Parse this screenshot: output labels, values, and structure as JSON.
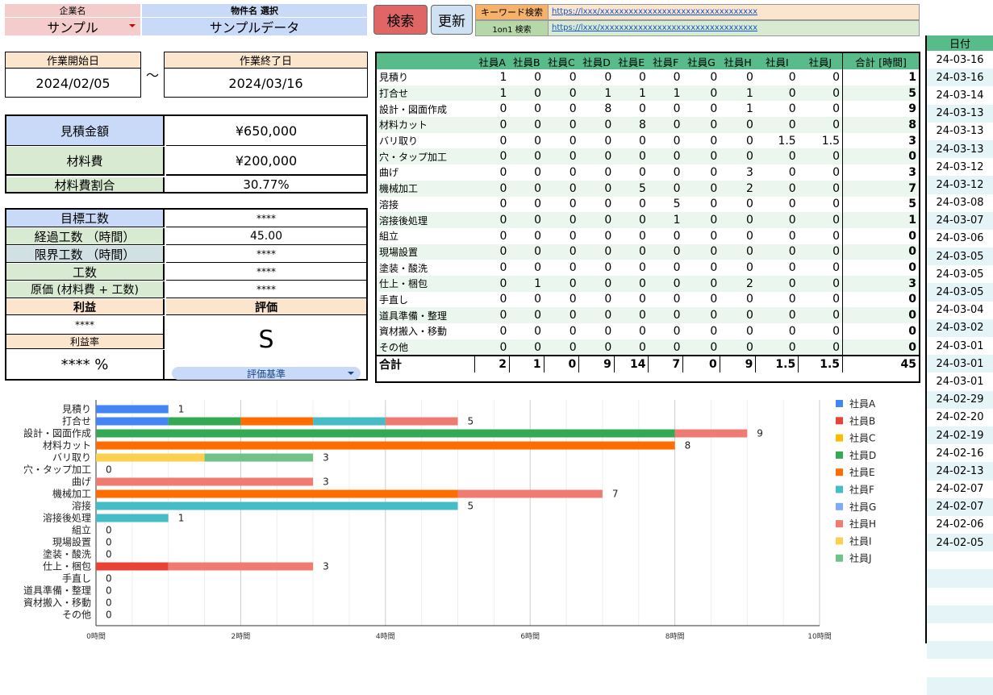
{
  "header": {
    "company_label": "企業名",
    "company_value": "サンプル",
    "project_label": "物件名 選択",
    "project_value": "サンプルデータ",
    "search_button": "検索",
    "update_button": "更新",
    "keyword_label": "キーワード検索",
    "keyword_link": "https://lxxx/xxxxxxxxxxxxxxxxxxxxxxxxxxxxxxxxx",
    "oneonone_label": "1on1 検索",
    "oneonone_link": "https://lxxx/xxxxxxxxxxxxxxxxxxxxxxxxxxxxxxxxx"
  },
  "period": {
    "start_label": "作業開始日",
    "start_value": "2024/02/05",
    "separator": "～",
    "end_label": "作業終了日",
    "end_value": "2024/03/16"
  },
  "cost": {
    "estimate_label": "見積金額",
    "estimate_value": "¥650,000",
    "material_label": "材料費",
    "material_value": "¥200,000",
    "ratio_label": "材料費割合",
    "ratio_value": "30.77%"
  },
  "work": {
    "target_label": "目標工数",
    "target_value": "****",
    "elapsed_label": "経過工数 （時間）",
    "elapsed_value": "45.00",
    "limit_label": "限界工数 （時間）",
    "limit_value": "****",
    "hours_label": "工数",
    "hours_value": "****",
    "cost_label": "原価 (材料費 + 工数)",
    "cost_value": "****",
    "profit_label": "利益",
    "profit_value": "****",
    "profit_rate_label": "利益率",
    "profit_rate_value": "**** %",
    "eval_label": "評価",
    "eval_value": "S",
    "eval_criteria": "評価基準"
  },
  "matrix": {
    "headers": [
      "社員A",
      "社員B",
      "社員C",
      "社員D",
      "社員E",
      "社員F",
      "社員G",
      "社員H",
      "社員I",
      "社員J"
    ],
    "total_header": "合計 [時間]",
    "rows": [
      {
        "task": "見積り",
        "vals": [
          "1",
          "0",
          "0",
          "0",
          "0",
          "0",
          "0",
          "0",
          "0",
          "0"
        ],
        "total": "1"
      },
      {
        "task": "打合せ",
        "vals": [
          "1",
          "0",
          "0",
          "1",
          "1",
          "1",
          "0",
          "1",
          "0",
          "0"
        ],
        "total": "5"
      },
      {
        "task": "設計・図面作成",
        "vals": [
          "0",
          "0",
          "0",
          "8",
          "0",
          "0",
          "0",
          "1",
          "0",
          "0"
        ],
        "total": "9"
      },
      {
        "task": "材料カット",
        "vals": [
          "0",
          "0",
          "0",
          "0",
          "8",
          "0",
          "0",
          "0",
          "0",
          "0"
        ],
        "total": "8"
      },
      {
        "task": "バリ取り",
        "vals": [
          "0",
          "0",
          "0",
          "0",
          "0",
          "0",
          "0",
          "0",
          "1.5",
          "1.5"
        ],
        "total": "3"
      },
      {
        "task": "穴・タップ加工",
        "vals": [
          "0",
          "0",
          "0",
          "0",
          "0",
          "0",
          "0",
          "0",
          "0",
          "0"
        ],
        "total": "0"
      },
      {
        "task": "曲げ",
        "vals": [
          "0",
          "0",
          "0",
          "0",
          "0",
          "0",
          "0",
          "3",
          "0",
          "0"
        ],
        "total": "3"
      },
      {
        "task": "機械加工",
        "vals": [
          "0",
          "0",
          "0",
          "0",
          "5",
          "0",
          "0",
          "2",
          "0",
          "0"
        ],
        "total": "7"
      },
      {
        "task": "溶接",
        "vals": [
          "0",
          "0",
          "0",
          "0",
          "0",
          "5",
          "0",
          "0",
          "0",
          "0"
        ],
        "total": "5"
      },
      {
        "task": "溶接後処理",
        "vals": [
          "0",
          "0",
          "0",
          "0",
          "0",
          "1",
          "0",
          "0",
          "0",
          "0"
        ],
        "total": "1"
      },
      {
        "task": "組立",
        "vals": [
          "0",
          "0",
          "0",
          "0",
          "0",
          "0",
          "0",
          "0",
          "0",
          "0"
        ],
        "total": "0"
      },
      {
        "task": "現場設置",
        "vals": [
          "0",
          "0",
          "0",
          "0",
          "0",
          "0",
          "0",
          "0",
          "0",
          "0"
        ],
        "total": "0"
      },
      {
        "task": "塗装・酸洗",
        "vals": [
          "0",
          "0",
          "0",
          "0",
          "0",
          "0",
          "0",
          "0",
          "0",
          "0"
        ],
        "total": "0"
      },
      {
        "task": "仕上・梱包",
        "vals": [
          "0",
          "1",
          "0",
          "0",
          "0",
          "0",
          "0",
          "2",
          "0",
          "0"
        ],
        "total": "3"
      },
      {
        "task": "手直し",
        "vals": [
          "0",
          "0",
          "0",
          "0",
          "0",
          "0",
          "0",
          "0",
          "0",
          "0"
        ],
        "total": "0"
      },
      {
        "task": "道具準備・整理",
        "vals": [
          "0",
          "0",
          "0",
          "0",
          "0",
          "0",
          "0",
          "0",
          "0",
          "0"
        ],
        "total": "0"
      },
      {
        "task": "資材搬入・移動",
        "vals": [
          "0",
          "0",
          "0",
          "0",
          "0",
          "0",
          "0",
          "0",
          "0",
          "0"
        ],
        "total": "0"
      },
      {
        "task": "その他",
        "vals": [
          "0",
          "0",
          "0",
          "0",
          "0",
          "0",
          "0",
          "0",
          "0",
          "0"
        ],
        "total": "0"
      }
    ],
    "sum_label": "合計",
    "sums": [
      "2",
      "1",
      "0",
      "9",
      "14",
      "7",
      "0",
      "9",
      "1.5",
      "1.5"
    ],
    "sum_total": "45"
  },
  "dates": {
    "header": "日付",
    "values": [
      "24-03-16",
      "24-03-16",
      "24-03-14",
      "24-03-13",
      "24-03-13",
      "24-03-13",
      "24-03-12",
      "24-03-12",
      "24-03-08",
      "24-03-07",
      "24-03-06",
      "24-03-05",
      "24-03-05",
      "24-03-05",
      "24-03-04",
      "24-03-02",
      "24-03-01",
      "24-03-01",
      "24-03-01",
      "24-02-29",
      "24-02-20",
      "24-02-19",
      "24-02-16",
      "24-02-13",
      "24-02-07",
      "24-02-07",
      "24-02-06",
      "24-02-05",
      "",
      "",
      "",
      "",
      "",
      "",
      "",
      ""
    ]
  },
  "chart_data": {
    "type": "bar",
    "orientation": "horizontal",
    "stacked": true,
    "categories": [
      "見積り",
      "打合せ",
      "設計・図面作成",
      "材料カット",
      "バリ取り",
      "穴・タップ加工",
      "曲げ",
      "機械加工",
      "溶接",
      "溶接後処理",
      "組立",
      "現場設置",
      "塗装・酸洗",
      "仕上・梱包",
      "手直し",
      "道具準備・整理",
      "資材搬入・移動",
      "その他"
    ],
    "series": [
      {
        "name": "社員A",
        "color": "#4285f4",
        "values": [
          1,
          1,
          0,
          0,
          0,
          0,
          0,
          0,
          0,
          0,
          0,
          0,
          0,
          0,
          0,
          0,
          0,
          0
        ]
      },
      {
        "name": "社員B",
        "color": "#ea4335",
        "values": [
          0,
          0,
          0,
          0,
          0,
          0,
          0,
          0,
          0,
          0,
          0,
          0,
          0,
          1,
          0,
          0,
          0,
          0
        ]
      },
      {
        "name": "社員C",
        "color": "#fbbc04",
        "values": [
          0,
          0,
          0,
          0,
          0,
          0,
          0,
          0,
          0,
          0,
          0,
          0,
          0,
          0,
          0,
          0,
          0,
          0
        ]
      },
      {
        "name": "社員D",
        "color": "#34a853",
        "values": [
          0,
          1,
          8,
          0,
          0,
          0,
          0,
          0,
          0,
          0,
          0,
          0,
          0,
          0,
          0,
          0,
          0,
          0
        ]
      },
      {
        "name": "社員E",
        "color": "#ff6d01",
        "values": [
          0,
          1,
          0,
          8,
          0,
          0,
          0,
          5,
          0,
          0,
          0,
          0,
          0,
          0,
          0,
          0,
          0,
          0
        ]
      },
      {
        "name": "社員F",
        "color": "#46bdc6",
        "values": [
          0,
          1,
          0,
          0,
          0,
          0,
          0,
          0,
          5,
          1,
          0,
          0,
          0,
          0,
          0,
          0,
          0,
          0
        ]
      },
      {
        "name": "社員G",
        "color": "#7baaf7",
        "values": [
          0,
          0,
          0,
          0,
          0,
          0,
          0,
          0,
          0,
          0,
          0,
          0,
          0,
          0,
          0,
          0,
          0,
          0
        ]
      },
      {
        "name": "社員H",
        "color": "#f07b72",
        "values": [
          0,
          1,
          1,
          0,
          0,
          0,
          3,
          2,
          0,
          0,
          0,
          0,
          0,
          2,
          0,
          0,
          0,
          0
        ]
      },
      {
        "name": "社員I",
        "color": "#fcd04f",
        "values": [
          0,
          0,
          0,
          0,
          1.5,
          0,
          0,
          0,
          0,
          0,
          0,
          0,
          0,
          0,
          0,
          0,
          0,
          0
        ]
      },
      {
        "name": "社員J",
        "color": "#71c287",
        "values": [
          0,
          0,
          0,
          0,
          1.5,
          0,
          0,
          0,
          0,
          0,
          0,
          0,
          0,
          0,
          0,
          0,
          0,
          0
        ]
      }
    ],
    "totals": [
      "1",
      "5",
      "9",
      "8",
      "3",
      "0",
      "3",
      "7",
      "5",
      "1",
      "0",
      "0",
      "0",
      "3",
      "0",
      "0",
      "0",
      "0"
    ],
    "x_ticks": [
      "0時間",
      "2時間",
      "4時間",
      "6時間",
      "8時間",
      "10時間"
    ],
    "xlim": [
      0,
      10
    ],
    "legend_position": "right",
    "grid": true
  }
}
